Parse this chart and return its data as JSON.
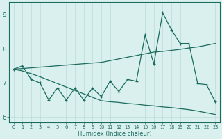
{
  "xlabel": "Humidex (Indice chaleur)",
  "background_color": "#d9f0ee",
  "line_color": "#1b6b5e",
  "grid_color": "#b8ddd9",
  "x_values": [
    0,
    1,
    2,
    3,
    4,
    5,
    6,
    7,
    8,
    9,
    10,
    11,
    12,
    13,
    14,
    15,
    16,
    17,
    18,
    19,
    20,
    21,
    22,
    23
  ],
  "y_main": [
    7.4,
    7.5,
    7.1,
    7.0,
    6.5,
    6.85,
    6.5,
    6.85,
    6.5,
    6.85,
    6.6,
    7.05,
    6.75,
    7.1,
    7.05,
    8.4,
    7.55,
    9.05,
    8.55,
    8.15,
    8.15,
    6.98,
    6.95,
    6.45
  ],
  "y_line_upper": [
    7.4,
    7.42,
    7.44,
    7.46,
    7.48,
    7.5,
    7.52,
    7.54,
    7.56,
    7.58,
    7.6,
    7.65,
    7.7,
    7.75,
    7.8,
    7.85,
    7.9,
    7.92,
    7.95,
    7.98,
    8.02,
    8.05,
    8.1,
    8.15
  ],
  "y_line_lower": [
    7.4,
    7.35,
    7.27,
    7.18,
    7.08,
    6.98,
    6.88,
    6.78,
    6.68,
    6.58,
    6.48,
    6.45,
    6.43,
    6.4,
    6.38,
    6.35,
    6.33,
    6.3,
    6.28,
    6.25,
    6.22,
    6.18,
    6.13,
    6.08
  ],
  "ylim": [
    5.85,
    9.35
  ],
  "xlim": [
    -0.5,
    23.5
  ],
  "yticks": [
    6,
    7,
    8,
    9
  ],
  "figsize": [
    3.2,
    2.0
  ],
  "dpi": 100
}
